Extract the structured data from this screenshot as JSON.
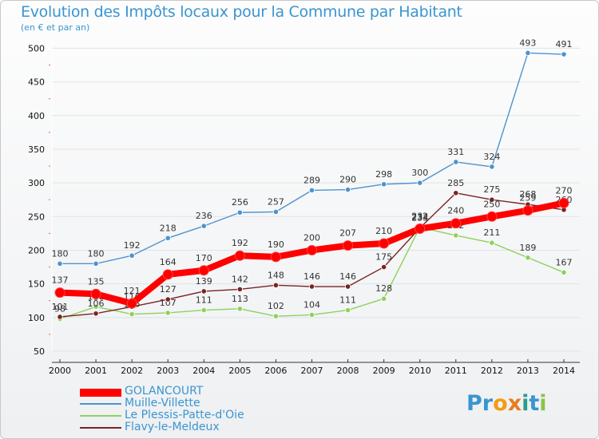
{
  "chart_data": {
    "type": "line",
    "title": "Evolution des Impôts locaux pour la Commune par Habitant",
    "subtitle": "(en € et par an)",
    "x": [
      "2000",
      "2001",
      "2002",
      "2003",
      "2004",
      "2005",
      "2006",
      "2007",
      "2008",
      "2009",
      "2010",
      "2011",
      "2012",
      "2013",
      "2014"
    ],
    "yticks": [
      50,
      100,
      150,
      200,
      250,
      300,
      350,
      400,
      450,
      500
    ],
    "ylim": [
      50,
      510
    ],
    "grid": true,
    "legend_position": "bottom-left",
    "series": [
      {
        "name": "GOLANCOURT",
        "color": "#ff0000",
        "values": [
          137,
          135,
          121,
          164,
          170,
          192,
          190,
          200,
          207,
          210,
          232,
          240,
          250,
          259,
          270
        ],
        "labels": [
          "137",
          "135",
          "121",
          "164",
          "170",
          "192",
          "190",
          "200",
          "207",
          "210",
          "232",
          "240",
          "250",
          "259",
          "270"
        ]
      },
      {
        "name": "Muille-Villette",
        "color": "#4d93cf",
        "values": [
          180,
          180,
          192,
          218,
          236,
          256,
          257,
          289,
          290,
          298,
          300,
          331,
          324,
          493,
          491
        ],
        "labels": [
          "180",
          "180",
          "192",
          "218",
          "236",
          "256",
          "257",
          "289",
          "290",
          "298",
          "300",
          "331",
          "324",
          "493",
          "491"
        ]
      },
      {
        "name": "Le Plessis-Patte-d'Oie",
        "color": "#8fd15c",
        "values": [
          98,
          116,
          105,
          107,
          111,
          113,
          102,
          104,
          111,
          128,
          234,
          222,
          211,
          189,
          167
        ],
        "labels": [
          "98",
          "116",
          "105",
          "107",
          "111",
          "113",
          "102",
          "104",
          "111",
          "128",
          "234",
          "222",
          "211",
          "189",
          "167"
        ]
      },
      {
        "name": "Flavy-le-Meldeux",
        "color": "#7a2323",
        "values": [
          101,
          106,
          116,
          127,
          139,
          142,
          148,
          146,
          146,
          175,
          233,
          285,
          275,
          268,
          260
        ],
        "labels": [
          "101",
          "106",
          "116",
          "127",
          "139",
          "142",
          "148",
          "146",
          "146",
          "175",
          "233",
          "285",
          "275",
          "268",
          "260"
        ]
      }
    ]
  },
  "logo": {
    "text": "Proxiti",
    "colors": [
      "#3a95d0",
      "#3a95d0",
      "#f39c12",
      "#e67e22",
      "#2a9d8f",
      "#3a95d0",
      "#8bc34a"
    ]
  }
}
